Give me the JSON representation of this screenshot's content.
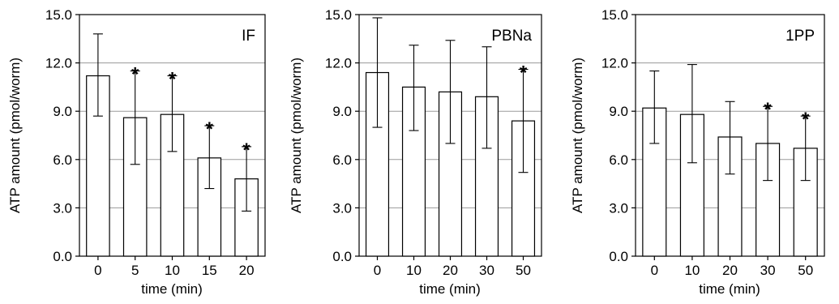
{
  "chart_data": [
    {
      "type": "bar",
      "panel_label": "IF",
      "ylabel": "ATP amount (pmol/worm)",
      "xlabel": "time (min)",
      "categories": [
        "0",
        "5",
        "10",
        "15",
        "20"
      ],
      "values": [
        11.2,
        8.6,
        8.8,
        6.1,
        4.8
      ],
      "error_high": [
        13.8,
        11.5,
        11.2,
        8.1,
        6.8
      ],
      "error_low": [
        8.7,
        5.7,
        6.5,
        4.2,
        2.8
      ],
      "significant": [
        false,
        true,
        true,
        true,
        true
      ],
      "significance_symbol": "*",
      "ylim": [
        0,
        15
      ],
      "yticks": [
        "0.0",
        "3.0",
        "6.0",
        "9.0",
        "12.0",
        "15.0"
      ],
      "grid": true
    },
    {
      "type": "bar",
      "panel_label": "PBNa",
      "ylabel": "ATP amount (pmol/worm)",
      "xlabel": "time (min)",
      "categories": [
        "0",
        "10",
        "20",
        "30",
        "50"
      ],
      "values": [
        11.4,
        10.5,
        10.2,
        9.9,
        8.4
      ],
      "error_high": [
        14.8,
        13.1,
        13.4,
        13.0,
        11.6
      ],
      "error_low": [
        8.0,
        7.8,
        7.0,
        6.7,
        5.2
      ],
      "significant": [
        false,
        false,
        false,
        false,
        true
      ],
      "significance_symbol": "*",
      "ylim": [
        0,
        15
      ],
      "yticks": [
        "0.0",
        "3.0",
        "6.0",
        "9.0",
        "12.0",
        "15.0"
      ],
      "grid": true
    },
    {
      "type": "bar",
      "panel_label": "1PP",
      "ylabel": "ATP amount (pmol/worm)",
      "xlabel": "time (min)",
      "categories": [
        "0",
        "10",
        "20",
        "30",
        "50"
      ],
      "values": [
        9.2,
        8.8,
        7.4,
        7.0,
        6.7
      ],
      "error_high": [
        11.5,
        11.9,
        9.6,
        9.3,
        8.7
      ],
      "error_low": [
        7.0,
        5.8,
        5.1,
        4.7,
        4.7
      ],
      "significant": [
        false,
        false,
        false,
        true,
        true
      ],
      "significance_symbol": "*",
      "ylim": [
        0,
        15
      ],
      "yticks": [
        "0.0",
        "3.0",
        "6.0",
        "9.0",
        "12.0",
        "15.0"
      ],
      "grid": true
    }
  ]
}
